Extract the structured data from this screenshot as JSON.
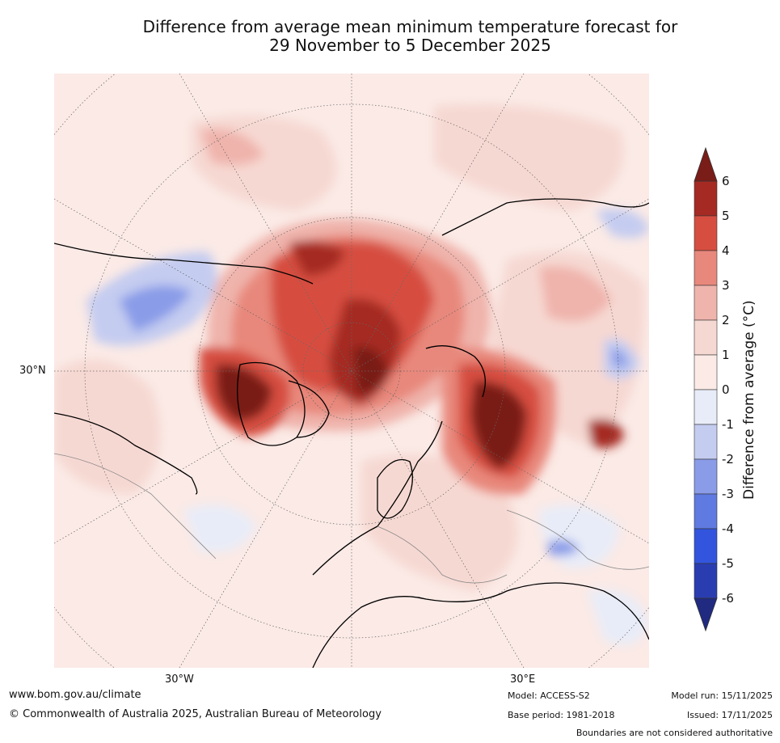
{
  "title": {
    "line1": "Difference from average mean minimum temperature forecast for",
    "line2": "29 November to 5 December 2025"
  },
  "map_labels": {
    "lat_30n": "30°N",
    "lon_30w": "30°W",
    "lon_30e": "30°E"
  },
  "colorbar": {
    "label": "Difference from average (°C)",
    "ticks": [
      "6",
      "5",
      "4",
      "3",
      "2",
      "1",
      "0",
      "-1",
      "-2",
      "-3",
      "-4",
      "-5",
      "-6"
    ],
    "colors": [
      "#a52a24",
      "#d64e40",
      "#e8887c",
      "#efb4ac",
      "#f6d8d2",
      "#fbeae6",
      "#e8ecf8",
      "#c4ccf0",
      "#8a9ce8",
      "#5f7ae0",
      "#3355dd",
      "#2a3db0"
    ],
    "over_color": "#7a1c18",
    "under_color": "#1f2a80"
  },
  "footer": {
    "url": "www.bom.gov.au/climate",
    "copyright": "© Commonwealth of Australia 2025, Australian Bureau of Meteorology",
    "model": "Model: ACCESS-S2",
    "base_period": "Base period: 1981-2018",
    "model_run": "Model run: 15/11/2025",
    "issued": "Issued: 17/11/2025",
    "disclaimer": "Boundaries are not considered authoritative"
  }
}
